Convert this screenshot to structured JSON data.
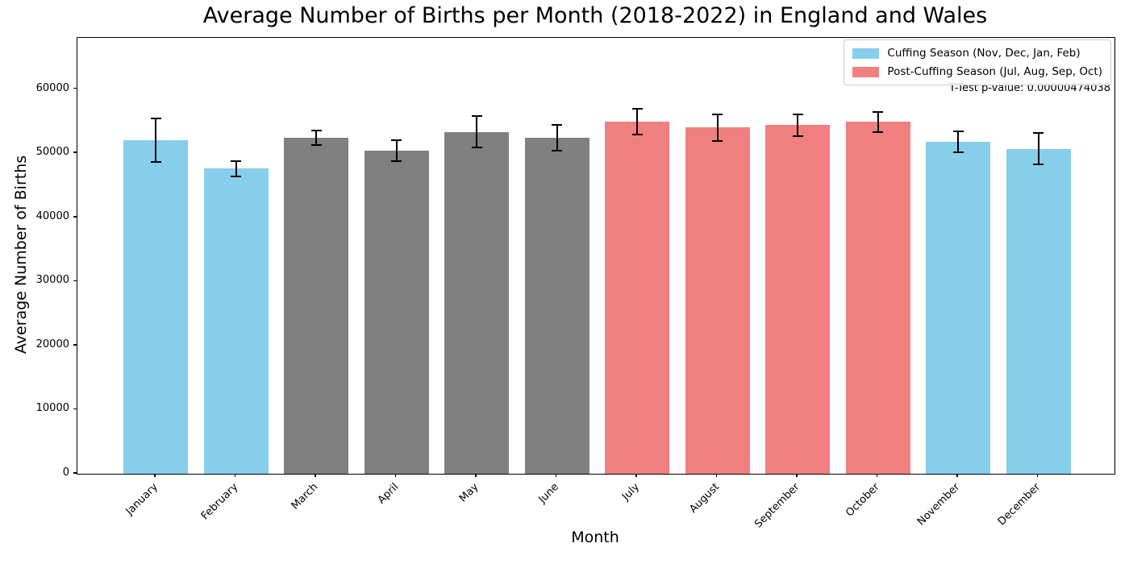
{
  "chart_data": {
    "type": "bar",
    "title": "Average Number of Births per Month (2018-2022) in England and Wales",
    "xlabel": "Month",
    "ylabel": "Average Number of Births",
    "categories": [
      "January",
      "February",
      "March",
      "April",
      "May",
      "June",
      "July",
      "August",
      "September",
      "October",
      "November",
      "December"
    ],
    "values": [
      52000,
      47600,
      52400,
      50400,
      53300,
      52400,
      54900,
      54000,
      54400,
      54900,
      51800,
      50700
    ],
    "error_bars": [
      3400,
      1200,
      1150,
      1600,
      2450,
      2000,
      2000,
      2100,
      1700,
      1550,
      1650,
      2450
    ],
    "bar_groups": [
      "cuffing",
      "cuffing",
      "other",
      "other",
      "other",
      "other",
      "post_cuffing",
      "post_cuffing",
      "post_cuffing",
      "post_cuffing",
      "cuffing",
      "cuffing"
    ],
    "group_colors": {
      "cuffing": "#87CEEB",
      "post_cuffing": "#F08080",
      "other": "#808080"
    },
    "error_color": "#000000",
    "ylim": [
      0,
      68000
    ],
    "yticks": [
      0,
      10000,
      20000,
      30000,
      40000,
      50000,
      60000
    ],
    "grid": false,
    "legend": {
      "position": "upper right",
      "entries": [
        {
          "label": "Cuffing Season (Nov, Dec, Jan, Feb)",
          "color": "#87CEEB"
        },
        {
          "label": "Post-Cuffing Season (Jul, Aug, Sep, Oct)",
          "color": "#F08080"
        }
      ]
    },
    "annotation": "T-Test p-value: 0.00000474038"
  }
}
